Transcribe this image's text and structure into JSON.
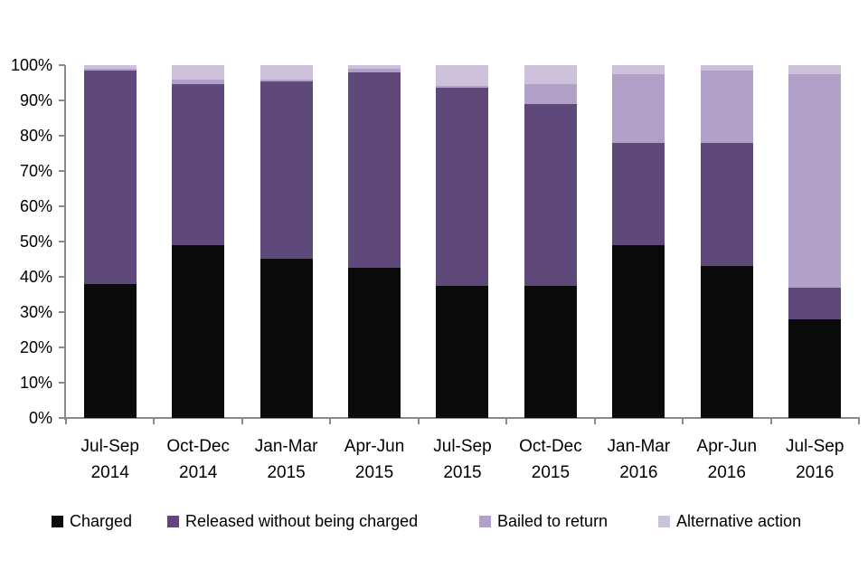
{
  "chart_data": {
    "type": "bar",
    "stacked": true,
    "percent_stacked": true,
    "title": "",
    "xlabel": "",
    "ylabel": "",
    "ylim": [
      0,
      100
    ],
    "grid": false,
    "legend_position": "bottom",
    "y_ticks": [
      "0%",
      "10%",
      "20%",
      "30%",
      "40%",
      "50%",
      "60%",
      "70%",
      "80%",
      "90%",
      "100%"
    ],
    "categories": [
      "Jul-Sep 2014",
      "Oct-Dec 2014",
      "Jan-Mar 2015",
      "Apr-Jun 2015",
      "Jul-Sep 2015",
      "Oct-Dec 2015",
      "Jan-Mar 2016",
      "Apr-Jun 2016",
      "Jul-Sep 2016"
    ],
    "series": [
      {
        "name": "Charged",
        "color": "#0b0b0b",
        "values": [
          38.0,
          49.0,
          45.0,
          42.5,
          37.5,
          37.5,
          49.0,
          43.0,
          28.0
        ]
      },
      {
        "name": "Released without being charged",
        "color": "#5f497a",
        "values": [
          60.5,
          45.5,
          50.5,
          55.5,
          56.0,
          51.5,
          29.0,
          35.0,
          9.0
        ]
      },
      {
        "name": "Bailed to return",
        "color": "#b1a0c7",
        "values": [
          0.5,
          1.5,
          0.5,
          1.0,
          0.5,
          5.5,
          19.5,
          20.5,
          60.5
        ]
      },
      {
        "name": "Alternative action",
        "color": "#ccc0da",
        "values": [
          1.0,
          4.0,
          4.0,
          1.0,
          6.0,
          5.5,
          2.5,
          1.5,
          2.5
        ]
      }
    ]
  },
  "style": {
    "axis_color": "#8a8a8a",
    "background": "#ffffff",
    "text_color": "#000000"
  }
}
